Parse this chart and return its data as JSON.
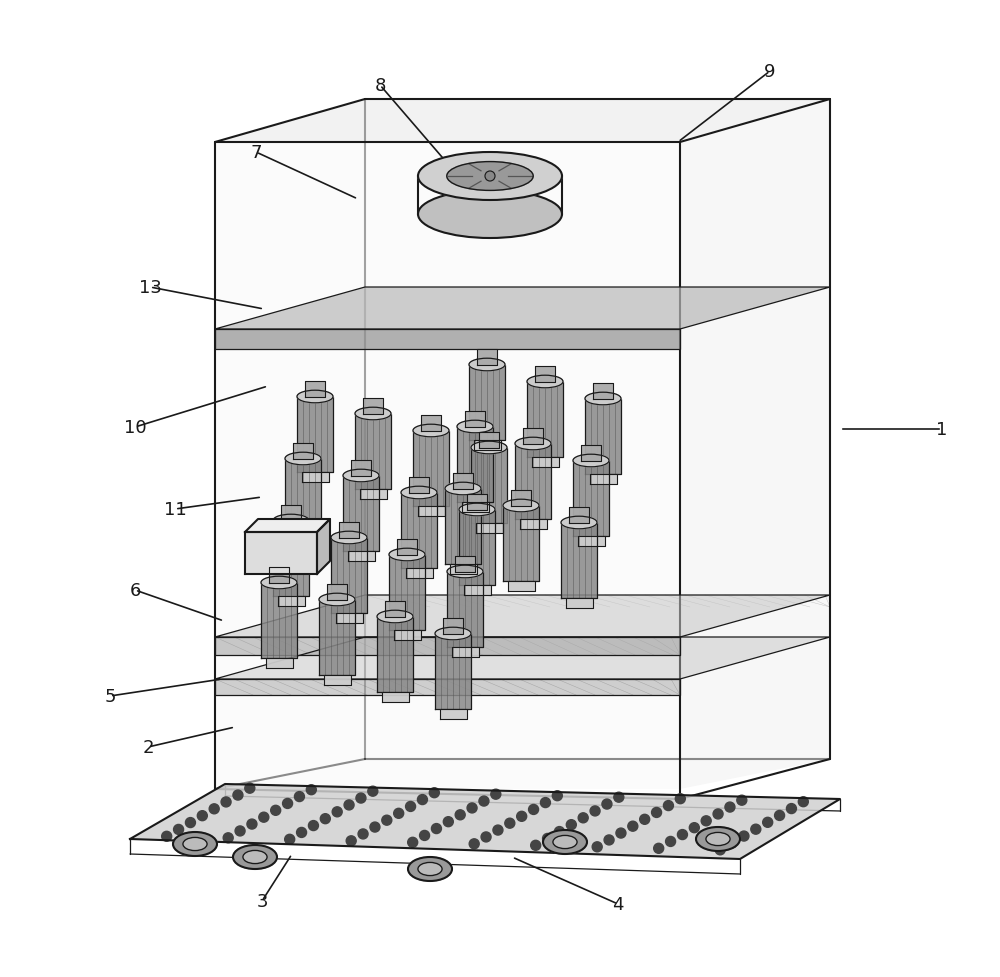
{
  "bg_color": "#ffffff",
  "line_color": "#1a1a1a",
  "light_gray": "#e8e8e8",
  "medium_gray": "#aaaaaa",
  "dark_gray": "#888888"
}
